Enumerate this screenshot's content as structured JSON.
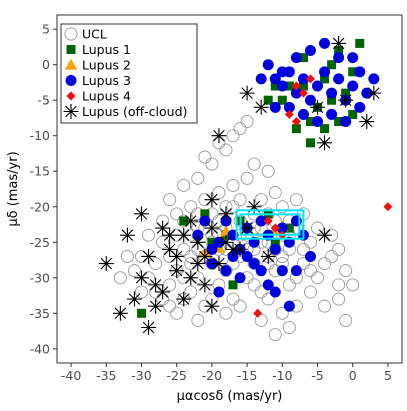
{
  "chart_data": {
    "type": "scatter",
    "xlabel": "μαcosδ (mas/yr)",
    "ylabel": "μδ (mas/yr)",
    "xlim": [
      -42,
      7
    ],
    "ylim": [
      -42,
      7
    ],
    "xticks": [
      -40,
      -35,
      -30,
      -25,
      -20,
      -15,
      -10,
      -5,
      0,
      5
    ],
    "yticks": [
      5,
      0,
      -5,
      -10,
      -15,
      -20,
      -25,
      -30,
      -35,
      -40
    ],
    "grid": false,
    "legend_position": "top-left",
    "highlight_box": {
      "x0": -16.5,
      "x1": -7.0,
      "y0": -24.5,
      "y1": -20.5,
      "color": "#00e5ff"
    },
    "series": [
      {
        "name": "UCL",
        "marker": "open-circle",
        "color": "#999999",
        "points": [
          [
            -31,
            -29
          ],
          [
            -30,
            -27
          ],
          [
            -29,
            -30
          ],
          [
            -28,
            -28
          ],
          [
            -27,
            -25
          ],
          [
            -26,
            -31
          ],
          [
            -25,
            -29
          ],
          [
            -24,
            -26
          ],
          [
            -23,
            -28
          ],
          [
            -22,
            -30
          ],
          [
            -21,
            -27
          ],
          [
            -20,
            -24
          ],
          [
            -19,
            -26
          ],
          [
            -18,
            -23
          ],
          [
            -17,
            -25
          ],
          [
            -16,
            -22
          ],
          [
            -15,
            -24
          ],
          [
            -14,
            -21
          ],
          [
            -13,
            -23
          ],
          [
            -12,
            -25
          ],
          [
            -11,
            -22
          ],
          [
            -10,
            -24
          ],
          [
            -9,
            -26
          ],
          [
            -8,
            -23
          ],
          [
            -7,
            -21
          ],
          [
            -6,
            -25
          ],
          [
            -27,
            -33
          ],
          [
            -25,
            -35
          ],
          [
            -23,
            -32
          ],
          [
            -21,
            -34
          ],
          [
            -19,
            -31
          ],
          [
            -17,
            -33
          ],
          [
            -15,
            -30
          ],
          [
            -13,
            -32
          ],
          [
            -11,
            -29
          ],
          [
            -9,
            -31
          ],
          [
            -7,
            -28
          ],
          [
            -5,
            -30
          ],
          [
            -3,
            -27
          ],
          [
            -2,
            -31
          ],
          [
            -29,
            -24
          ],
          [
            -27,
            -22
          ],
          [
            -25,
            -21
          ],
          [
            -23,
            -20
          ],
          [
            -21,
            -19
          ],
          [
            -19,
            -18
          ],
          [
            -17,
            -17
          ],
          [
            -15,
            -16
          ],
          [
            -13,
            -19
          ],
          [
            -11,
            -18
          ],
          [
            -22,
            -16
          ],
          [
            -20,
            -14
          ],
          [
            -18,
            -12
          ],
          [
            -17,
            -10
          ],
          [
            -16,
            -9
          ],
          [
            -15,
            -8
          ],
          [
            -19,
            -11
          ],
          [
            -21,
            -13
          ],
          [
            -14,
            -14
          ],
          [
            -12,
            -15
          ],
          [
            -26,
            -19
          ],
          [
            -24,
            -17
          ],
          [
            -23,
            -24
          ],
          [
            -22,
            -26
          ],
          [
            -20,
            -28
          ],
          [
            -18,
            -29
          ],
          [
            -16,
            -27
          ],
          [
            -14,
            -26
          ],
          [
            -12,
            -28
          ],
          [
            -10,
            -27
          ],
          [
            -8,
            -30
          ],
          [
            -6,
            -29
          ],
          [
            -4,
            -28
          ],
          [
            -3,
            -24
          ],
          [
            -2,
            -26
          ],
          [
            -1,
            -29
          ],
          [
            0,
            -31
          ],
          [
            -33,
            -30
          ],
          [
            -32,
            -27
          ],
          [
            -30,
            -32
          ],
          [
            -24,
            -22
          ],
          [
            -22,
            -23
          ],
          [
            -20,
            -21
          ],
          [
            -18,
            -20
          ],
          [
            -16,
            -19
          ],
          [
            -14,
            -23
          ],
          [
            -12,
            -21
          ],
          [
            -10,
            -20
          ],
          [
            -9,
            -22
          ],
          [
            -8,
            -19
          ],
          [
            -26,
            -27
          ],
          [
            -25,
            -24
          ],
          [
            -24,
            -30
          ],
          [
            -23,
            -27
          ],
          [
            -22,
            -21
          ],
          [
            -21,
            -23
          ],
          [
            -20,
            -25
          ],
          [
            -19,
            -22
          ],
          [
            -18,
            -26
          ],
          [
            -17,
            -28
          ],
          [
            -16,
            -24
          ],
          [
            -15,
            -26
          ],
          [
            -14,
            -28
          ],
          [
            -13,
            -25
          ],
          [
            -12,
            -27
          ],
          [
            -11,
            -26
          ],
          [
            -10,
            -28
          ],
          [
            -9,
            -24
          ],
          [
            -7,
            -26
          ],
          [
            -5,
            -23
          ],
          [
            -28,
            -32
          ],
          [
            -26,
            -34
          ],
          [
            -24,
            -33
          ],
          [
            -22,
            -36
          ],
          [
            -20,
            -33
          ],
          [
            -18,
            -35
          ],
          [
            -16,
            -34
          ],
          [
            -14,
            -31
          ],
          [
            -12,
            -33
          ],
          [
            -10,
            -35
          ],
          [
            -1,
            -36
          ],
          [
            -2,
            -33
          ],
          [
            -4,
            -34
          ],
          [
            -6,
            -32
          ],
          [
            -8,
            -34
          ],
          [
            -13,
            -36
          ],
          [
            -9,
            -37
          ],
          [
            -11,
            -38
          ],
          [
            -17,
            -20
          ],
          [
            -19,
            -24
          ]
        ]
      },
      {
        "name": "Lupus 1",
        "marker": "square",
        "color": "#006400",
        "points": [
          [
            -10,
            -5
          ],
          [
            -9,
            -3
          ],
          [
            -7,
            1
          ],
          [
            -6,
            -8
          ],
          [
            -5,
            -6
          ],
          [
            -4,
            -2
          ],
          [
            -3,
            0
          ],
          [
            -2,
            2
          ],
          [
            -1,
            -4
          ],
          [
            0,
            -1
          ],
          [
            1,
            3
          ],
          [
            -8,
            -9
          ],
          [
            -6,
            -11
          ],
          [
            -4,
            -9
          ],
          [
            -2,
            -8
          ],
          [
            -12,
            -5
          ],
          [
            -11,
            -3
          ],
          [
            -3,
            -5
          ],
          [
            -7,
            -3
          ],
          [
            0,
            -7
          ],
          [
            -21,
            -21
          ],
          [
            -18,
            -24
          ],
          [
            -16,
            -22
          ],
          [
            -12,
            -21
          ],
          [
            -24,
            -22
          ],
          [
            -17,
            -31
          ],
          [
            -20,
            -25
          ],
          [
            -30,
            -35
          ],
          [
            -11,
            -25
          ],
          [
            -9,
            -23
          ]
        ]
      },
      {
        "name": "Lupus 2",
        "marker": "triangle",
        "color": "#f5a300",
        "points": [
          [
            -21,
            -26.5
          ],
          [
            -19,
            -25.8
          ],
          [
            -18,
            -23.5
          ],
          [
            -11,
            -23.2
          ],
          [
            -10,
            -22.8
          ]
        ]
      },
      {
        "name": "Lupus 3",
        "marker": "circle",
        "color": "#0000dd",
        "points": [
          [
            -12,
            0
          ],
          [
            -11,
            -2
          ],
          [
            -10,
            -3
          ],
          [
            -9,
            -1
          ],
          [
            -8,
            -4
          ],
          [
            -7,
            -2
          ],
          [
            -6,
            -5
          ],
          [
            -5,
            -3
          ],
          [
            -4,
            -1
          ],
          [
            -3,
            -4
          ],
          [
            -2,
            -2
          ],
          [
            -1,
            -5
          ],
          [
            0,
            -3
          ],
          [
            1,
            -1
          ],
          [
            2,
            -4
          ],
          [
            3,
            -2
          ],
          [
            -9,
            -6
          ],
          [
            -7,
            -7
          ],
          [
            -5,
            -8
          ],
          [
            -3,
            -7
          ],
          [
            -1,
            -8
          ],
          [
            -10,
            -1
          ],
          [
            -8,
            1
          ],
          [
            -6,
            2
          ],
          [
            -4,
            3
          ],
          [
            -2,
            1
          ],
          [
            -13,
            -2
          ],
          [
            0,
            1
          ],
          [
            1,
            -6
          ],
          [
            -11,
            -6
          ],
          [
            -22,
            -24
          ],
          [
            -21,
            -22
          ],
          [
            -20,
            -26
          ],
          [
            -19,
            -25
          ],
          [
            -18,
            -22
          ],
          [
            -17,
            -24
          ],
          [
            -16,
            -26
          ],
          [
            -15,
            -23
          ],
          [
            -14,
            -25
          ],
          [
            -13,
            -22
          ],
          [
            -12,
            -24
          ],
          [
            -11,
            -26
          ],
          [
            -10,
            -23
          ],
          [
            -9,
            -25
          ],
          [
            -8,
            -22
          ],
          [
            -7,
            -24
          ],
          [
            -20,
            -28
          ],
          [
            -18,
            -29
          ],
          [
            -16,
            -30
          ],
          [
            -14,
            -28
          ],
          [
            -12,
            -31
          ],
          [
            -10,
            -29
          ],
          [
            -19,
            -32
          ],
          [
            -15,
            -27
          ],
          [
            -17,
            -27
          ],
          [
            -13,
            -29
          ],
          [
            -11,
            -32
          ],
          [
            -9,
            -34
          ],
          [
            -8,
            -29
          ],
          [
            -6,
            -27
          ]
        ]
      },
      {
        "name": "Lupus 4",
        "marker": "diamond",
        "color": "#ee1111",
        "points": [
          [
            -8,
            -3
          ],
          [
            -7,
            -4
          ],
          [
            -6,
            -2
          ],
          [
            -9,
            -7
          ],
          [
            -8,
            -8
          ],
          [
            -11,
            -23
          ],
          [
            -10,
            -24
          ],
          [
            -12,
            -22
          ],
          [
            -13.5,
            -35
          ],
          [
            5,
            -20
          ]
        ]
      },
      {
        "name": "Lupus (off-cloud)",
        "marker": "asterisk",
        "color": "#000000",
        "points": [
          [
            -2,
            3
          ],
          [
            -1,
            -5
          ],
          [
            3,
            -4
          ],
          [
            2,
            -8
          ],
          [
            -4,
            -11
          ],
          [
            -5,
            -6
          ],
          [
            -15,
            -4
          ],
          [
            -13,
            -6
          ],
          [
            -19,
            -10
          ],
          [
            -30,
            -21
          ],
          [
            -29,
            -27
          ],
          [
            -28,
            -31
          ],
          [
            -27,
            -23
          ],
          [
            -26,
            -26
          ],
          [
            -25,
            -29
          ],
          [
            -24,
            -24
          ],
          [
            -23,
            -22
          ],
          [
            -22,
            -25
          ],
          [
            -21,
            -27
          ],
          [
            -20,
            -23
          ],
          [
            -19,
            -28
          ],
          [
            -18,
            -21
          ],
          [
            -17,
            -26
          ],
          [
            -15,
            -23
          ],
          [
            -14,
            -20
          ],
          [
            -35,
            -28
          ],
          [
            -33,
            -35
          ],
          [
            -32,
            -24
          ],
          [
            -31,
            -33
          ],
          [
            -30,
            -30
          ],
          [
            -28,
            -34
          ],
          [
            -27,
            -32
          ],
          [
            -25,
            -27
          ],
          [
            -23,
            -30
          ],
          [
            -22,
            -28
          ],
          [
            -21,
            -31
          ],
          [
            -20,
            -34
          ],
          [
            -16,
            -26
          ],
          [
            -12,
            -27
          ],
          [
            -4,
            -24
          ],
          [
            -29,
            -37
          ],
          [
            -24,
            -33
          ],
          [
            -26,
            -24
          ],
          [
            -20,
            -19
          ],
          [
            -18,
            -25
          ]
        ]
      }
    ]
  }
}
